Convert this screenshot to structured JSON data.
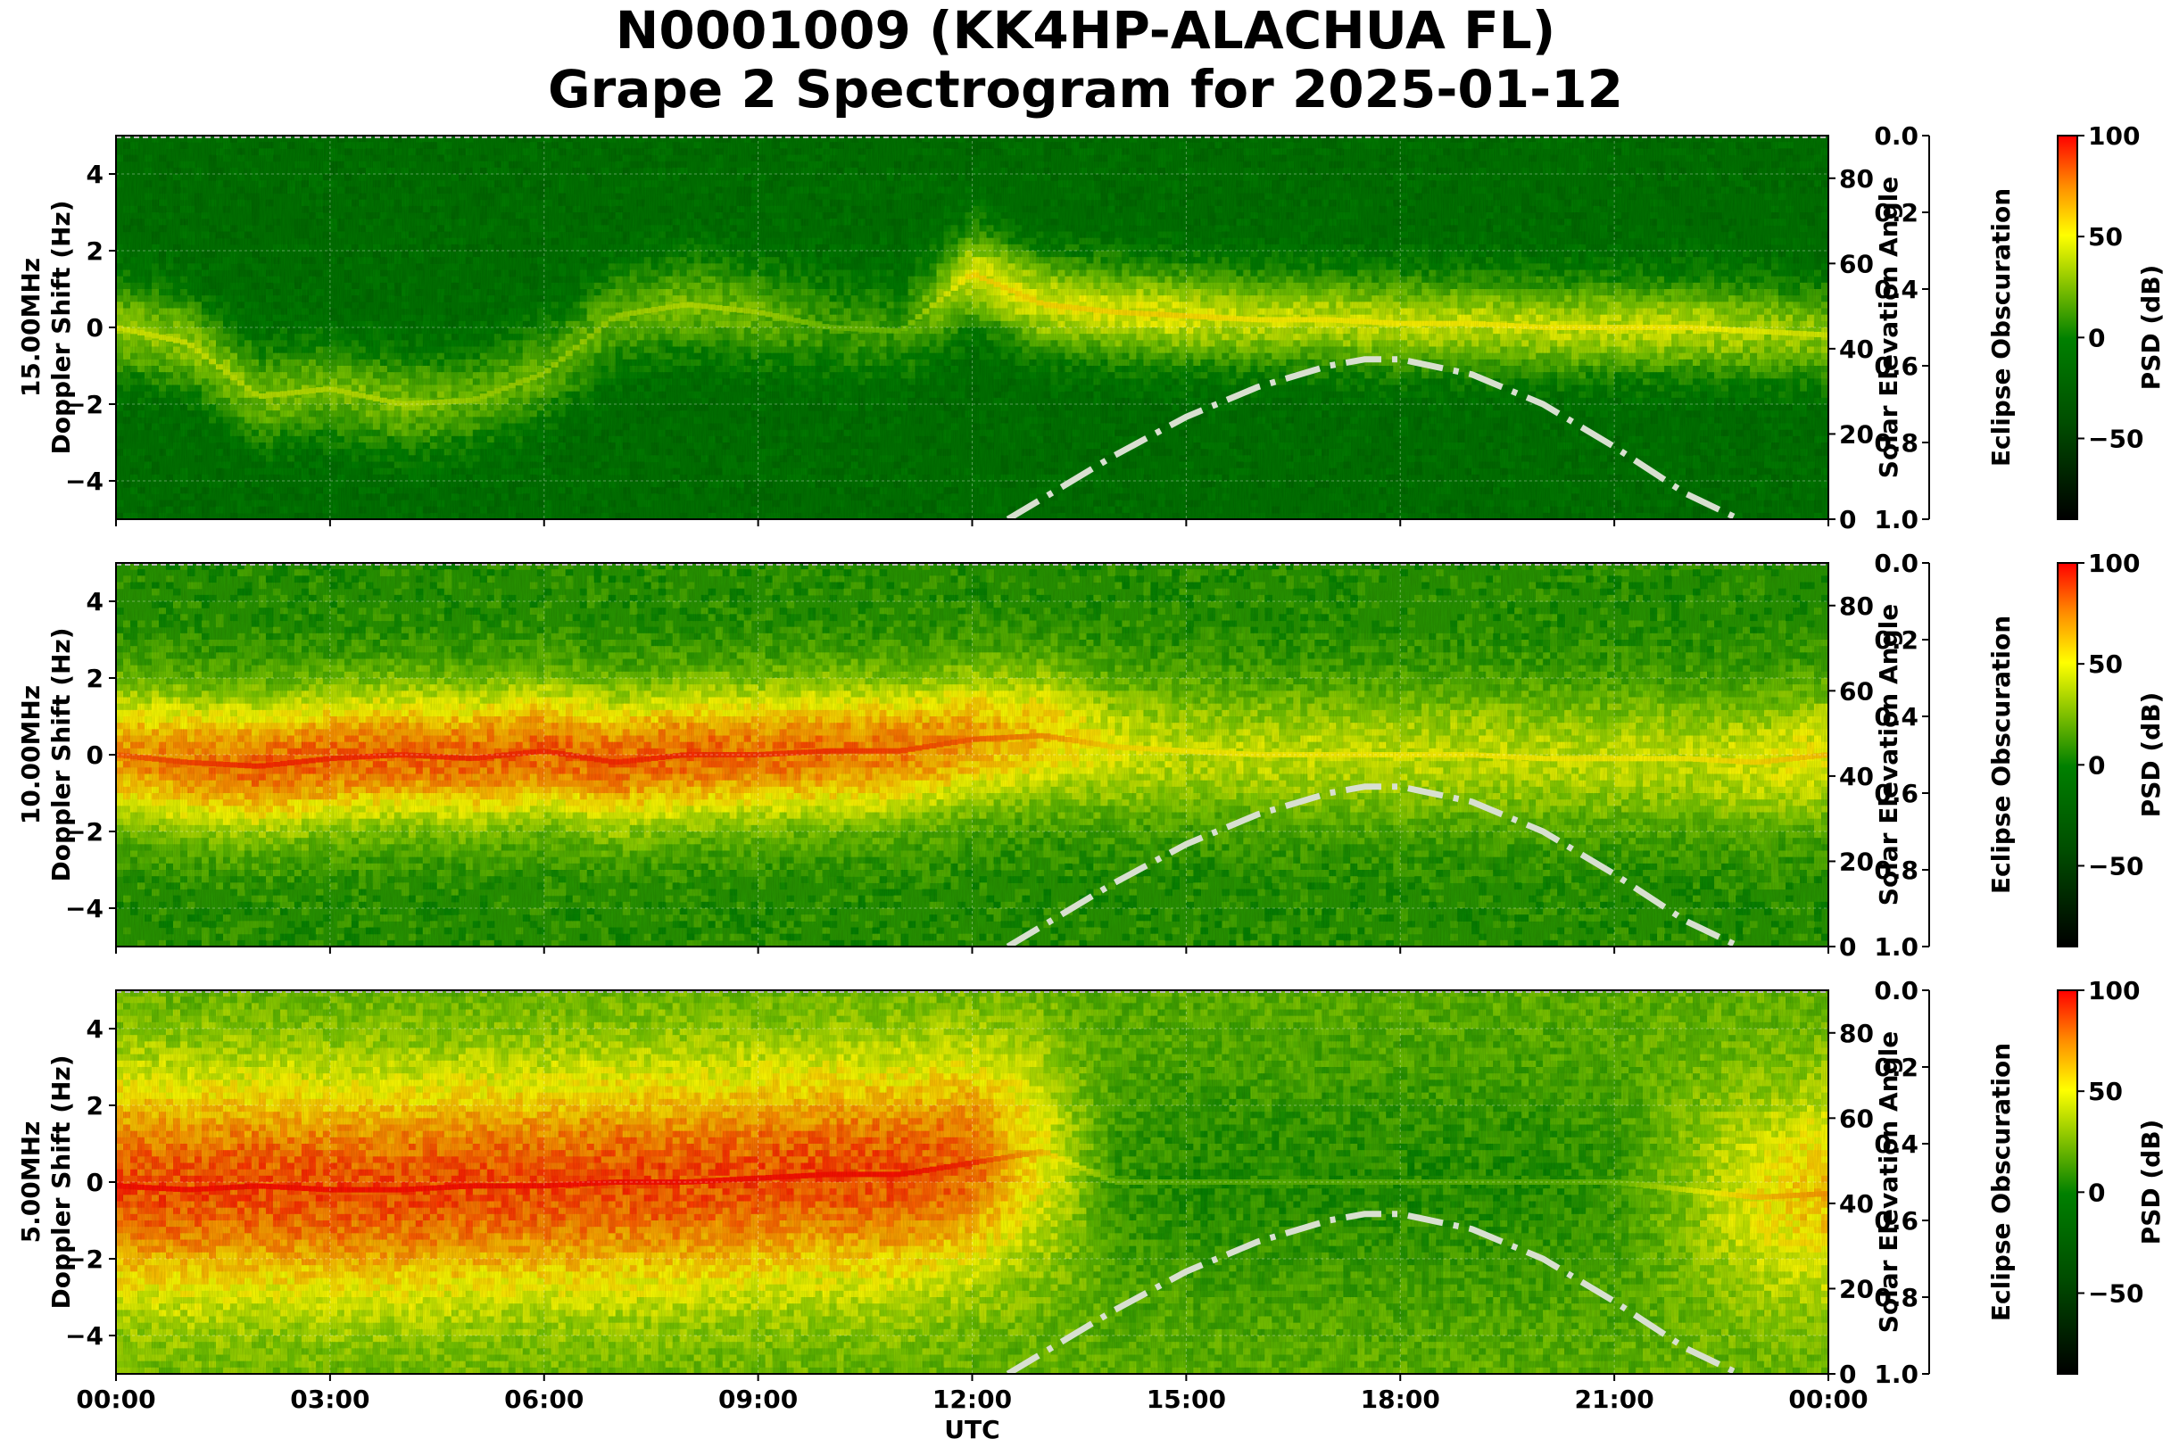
{
  "title": "N0001009 (KK4HP-ALACHUA FL)",
  "subtitle": "Grape 2 Spectrogram for 2025-01-12",
  "xlabel": "UTC",
  "colors": {
    "cmap_low": "#000000",
    "cmap_mid": "#008000",
    "cmap_high_yellow": "#ffff00",
    "cmap_top": "#ff0000",
    "solar_curve": "#d8e0d0"
  },
  "chart_data": [
    {
      "type": "heatmap",
      "name": "15.00MHz",
      "ylabel": "15.00MHz\nDoppler Shift (Hz)",
      "ylim": [
        -5,
        5
      ],
      "yticks": [
        -4,
        -2,
        0,
        2,
        4
      ],
      "xlim_hours": [
        0,
        24
      ],
      "xticks": [
        "00:00",
        "03:00",
        "06:00",
        "09:00",
        "12:00",
        "15:00",
        "18:00",
        "21:00",
        "00:00"
      ],
      "right_axis": {
        "label": "Solar Elevation Angle",
        "ylim": [
          0,
          90
        ],
        "ticks": [
          0,
          20,
          40,
          60,
          80
        ]
      },
      "eclipse_axis": {
        "label": "Eclipse Obscuration",
        "ylim": [
          1.0,
          0.0
        ],
        "ticks": [
          "0.0",
          "0.2",
          "0.4",
          "0.6",
          "0.8",
          "1.0"
        ]
      },
      "colorbar": {
        "label": "PSD (dB)",
        "range": [
          -90,
          100
        ],
        "ticks": [
          100,
          50,
          0,
          -50
        ],
        "tick_labels": [
          "100",
          "50",
          "0",
          "−50"
        ]
      },
      "solar_elevation": {
        "hours": [
          12.5,
          13,
          14,
          15,
          16,
          17,
          17.5,
          18,
          19,
          20,
          21,
          22,
          22.75
        ],
        "degrees": [
          0,
          5,
          15,
          24,
          31,
          36,
          37.5,
          37.5,
          34,
          27,
          17,
          6,
          0
        ]
      },
      "background_level_db": -15,
      "trace_doppler_hz": [
        0.0,
        -0.4,
        -1.8,
        -1.6,
        -2.0,
        -1.9,
        -1.2,
        0.3,
        0.6,
        0.4,
        0.0,
        -0.1,
        1.4,
        0.6,
        0.4,
        0.3,
        0.2,
        0.2,
        0.1,
        0.1,
        0.0,
        0.0,
        0.0,
        -0.1,
        -0.2
      ],
      "trace_level_db": [
        30,
        30,
        25,
        25,
        25,
        20,
        20,
        20,
        25,
        22,
        10,
        10,
        45,
        45,
        45,
        45,
        40,
        40,
        40,
        40,
        40,
        40,
        40,
        35,
        30
      ],
      "spread_hz": 1.2
    },
    {
      "type": "heatmap",
      "name": "10.00MHz",
      "ylabel": "10.00MHz\nDoppler Shift (Hz)",
      "ylim": [
        -5,
        5
      ],
      "yticks": [
        -4,
        -2,
        0,
        2,
        4
      ],
      "xlim_hours": [
        0,
        24
      ],
      "xticks": [
        "00:00",
        "03:00",
        "06:00",
        "09:00",
        "12:00",
        "15:00",
        "18:00",
        "21:00",
        "00:00"
      ],
      "right_axis": {
        "label": "Solar Elevation Angle",
        "ylim": [
          0,
          90
        ],
        "ticks": [
          0,
          20,
          40,
          60,
          80
        ]
      },
      "eclipse_axis": {
        "label": "Eclipse Obscuration",
        "ylim": [
          1.0,
          0.0
        ],
        "ticks": [
          "0.0",
          "0.2",
          "0.4",
          "0.6",
          "0.8",
          "1.0"
        ]
      },
      "colorbar": {
        "label": "PSD (dB)",
        "range": [
          -90,
          100
        ],
        "ticks": [
          100,
          50,
          0,
          -50
        ],
        "tick_labels": [
          "100",
          "50",
          "0",
          "−50"
        ]
      },
      "solar_elevation": {
        "hours": [
          12.5,
          13,
          14,
          15,
          16,
          17,
          17.5,
          18,
          19,
          20,
          21,
          22,
          22.75
        ],
        "degrees": [
          0,
          5,
          15,
          24,
          31,
          36,
          37.5,
          37.5,
          34,
          27,
          17,
          6,
          0
        ]
      },
      "background_level_db": 5,
      "trace_doppler_hz": [
        0.0,
        -0.2,
        -0.3,
        -0.1,
        0.0,
        -0.1,
        0.1,
        -0.2,
        0.0,
        0.0,
        0.1,
        0.1,
        0.4,
        0.5,
        0.2,
        0.1,
        0.0,
        0.0,
        0.0,
        0.0,
        -0.1,
        -0.1,
        -0.1,
        -0.2,
        0.0
      ],
      "trace_level_db": [
        70,
        75,
        80,
        80,
        80,
        80,
        80,
        80,
        80,
        78,
        78,
        75,
        70,
        60,
        45,
        40,
        40,
        40,
        40,
        40,
        40,
        40,
        40,
        45,
        50
      ],
      "spread_hz": 1.8
    },
    {
      "type": "heatmap",
      "name": "5.00MHz",
      "ylabel": "5.00MHz\nDoppler Shift (Hz)",
      "ylim": [
        -5,
        5
      ],
      "yticks": [
        -4,
        -2,
        0,
        2,
        4
      ],
      "xlim_hours": [
        0,
        24
      ],
      "xticks": [
        "00:00",
        "03:00",
        "06:00",
        "09:00",
        "12:00",
        "15:00",
        "18:00",
        "21:00",
        "00:00"
      ],
      "right_axis": {
        "label": "Solar Elevation Angle",
        "ylim": [
          0,
          90
        ],
        "ticks": [
          0,
          20,
          40,
          60,
          80
        ]
      },
      "eclipse_axis": {
        "label": "Eclipse Obscuration",
        "ylim": [
          1.0,
          0.0
        ],
        "ticks": [
          "0.0",
          "0.2",
          "0.4",
          "0.6",
          "0.8",
          "1.0"
        ]
      },
      "colorbar": {
        "label": "PSD (dB)",
        "range": [
          -90,
          100
        ],
        "ticks": [
          100,
          50,
          0,
          -50
        ],
        "tick_labels": [
          "100",
          "50",
          "0",
          "−50"
        ]
      },
      "solar_elevation": {
        "hours": [
          12.5,
          13,
          14,
          15,
          16,
          17,
          17.5,
          18,
          19,
          20,
          21,
          22,
          22.75
        ],
        "degrees": [
          0,
          5,
          15,
          24,
          31,
          36,
          37.5,
          37.5,
          34,
          27,
          17,
          6,
          0
        ]
      },
      "background_level_db": 20,
      "trace_doppler_hz": [
        -0.1,
        -0.2,
        -0.1,
        -0.2,
        -0.2,
        -0.1,
        -0.1,
        0.0,
        0.0,
        0.1,
        0.2,
        0.2,
        0.5,
        0.8,
        0.0,
        0.0,
        0.0,
        0.0,
        0.0,
        0.0,
        0.0,
        0.0,
        -0.2,
        -0.4,
        -0.3
      ],
      "trace_level_db": [
        85,
        85,
        85,
        85,
        85,
        85,
        85,
        85,
        85,
        85,
        85,
        85,
        80,
        50,
        10,
        5,
        5,
        5,
        5,
        5,
        5,
        10,
        30,
        50,
        60
      ],
      "spread_hz": 3.0
    }
  ]
}
